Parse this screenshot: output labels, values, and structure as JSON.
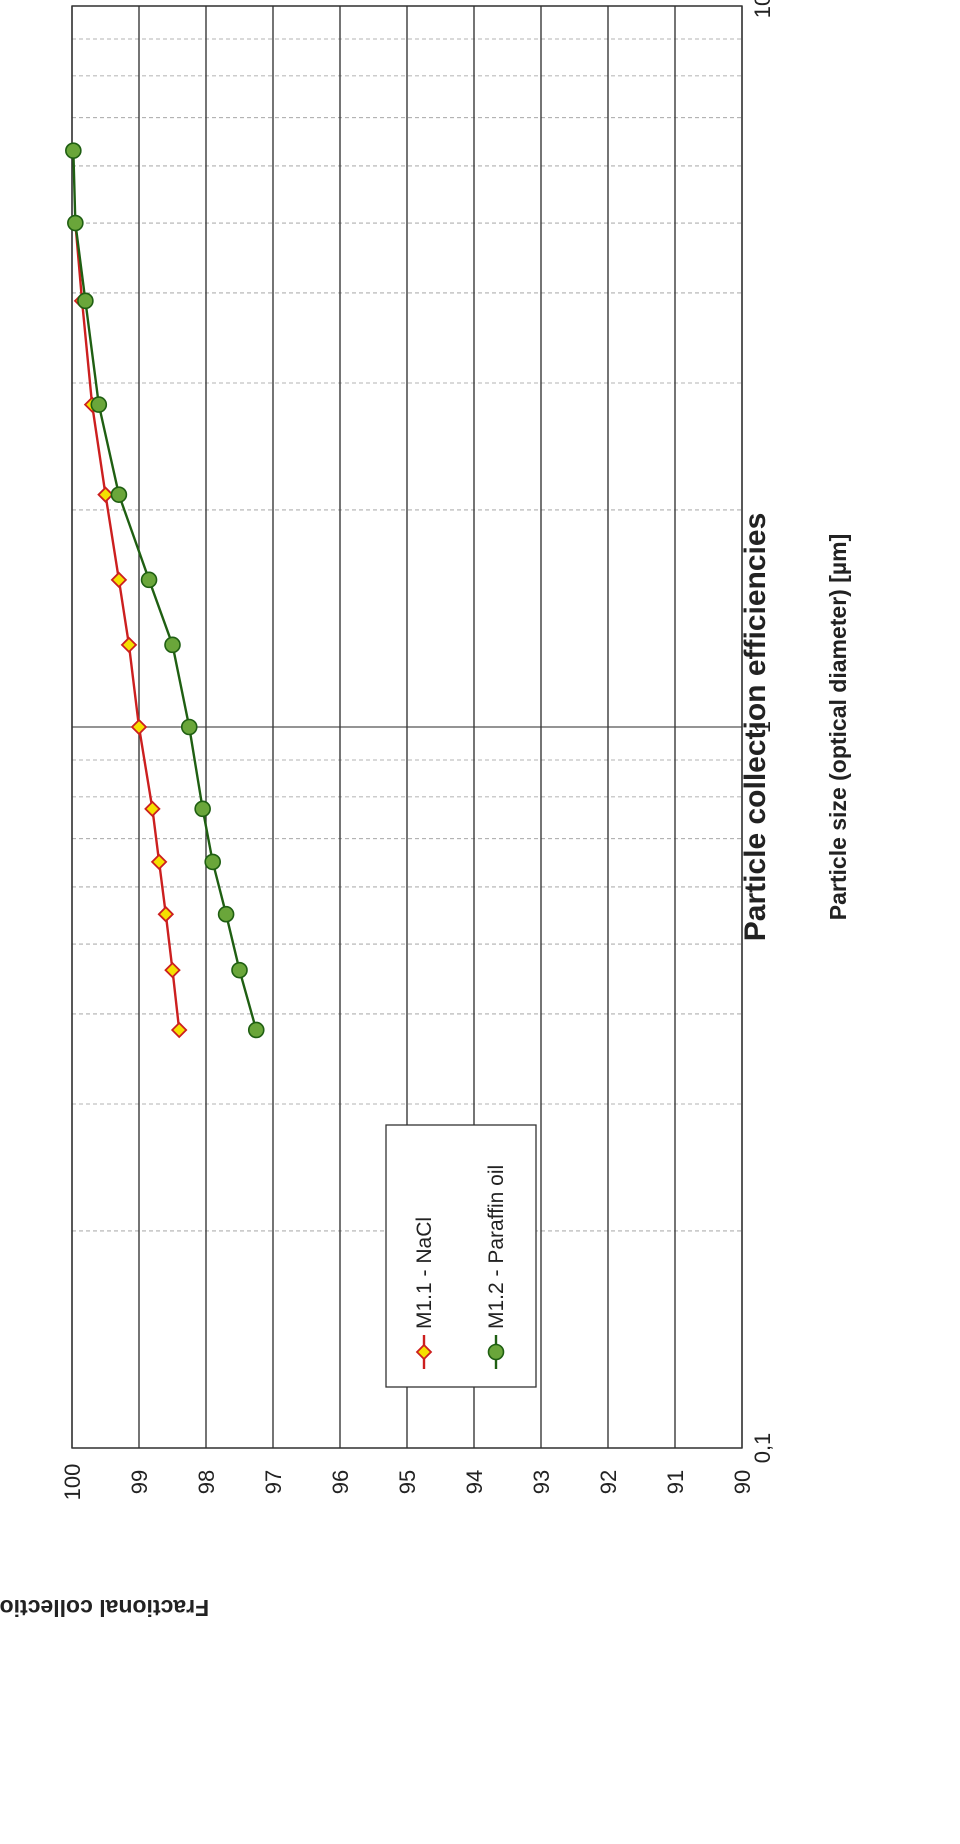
{
  "chart_data": {
    "type": "line",
    "title": "Particle collection efficiencies",
    "xlabel": "Particle size (optical diameter) [µm]",
    "ylabel": "Fractional collection efficiency  [%]",
    "x_scale": "log",
    "xlim": [
      0.1,
      10
    ],
    "ylim": [
      90,
      100
    ],
    "x_tick_labels": [
      "0,1",
      "1",
      "10"
    ],
    "x_tick_values": [
      0.1,
      1,
      10
    ],
    "y_tick_labels": [
      "90",
      "91",
      "92",
      "93",
      "94",
      "95",
      "96",
      "97",
      "98",
      "99",
      "100"
    ],
    "y_tick_values": [
      90,
      91,
      92,
      93,
      94,
      95,
      96,
      97,
      98,
      99,
      100
    ],
    "grid": true,
    "legend_position": "lower-left",
    "series": [
      {
        "name": "M1.1 - NaCl",
        "color": "#cc1f1f",
        "marker": "diamond",
        "marker_fill": "#f5e000",
        "x": [
          0.38,
          0.46,
          0.55,
          0.65,
          0.77,
          1.0,
          1.3,
          1.6,
          2.1,
          2.8,
          3.9,
          5.0
        ],
        "y": [
          98.4,
          98.5,
          98.6,
          98.7,
          98.8,
          99.0,
          99.15,
          99.3,
          99.5,
          99.7,
          99.85,
          99.95
        ]
      },
      {
        "name": "M1.2 - Paraffin oil",
        "color": "#1f5f12",
        "marker": "circle",
        "marker_fill": "#6aa63a",
        "x": [
          0.38,
          0.46,
          0.55,
          0.65,
          0.77,
          1.0,
          1.3,
          1.6,
          2.1,
          2.8,
          3.9,
          5.0,
          6.3
        ],
        "y": [
          97.25,
          97.5,
          97.7,
          97.9,
          98.05,
          98.25,
          98.5,
          98.85,
          99.3,
          99.6,
          99.8,
          99.95,
          99.98
        ]
      }
    ]
  }
}
